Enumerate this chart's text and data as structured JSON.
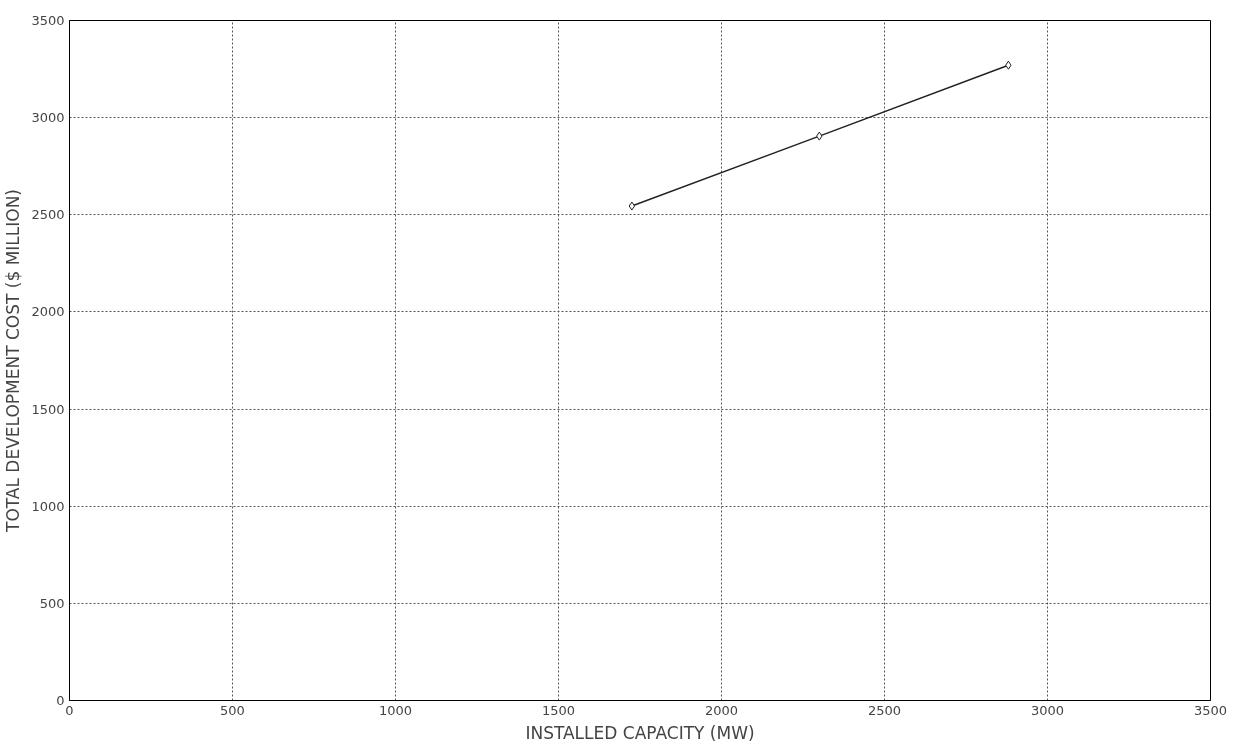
{
  "chart_data": {
    "type": "line",
    "xlabel": "INSTALLED CAPACITY (MW)",
    "ylabel": "TOTAL DEVELOPMENT COST ($ MILLION)",
    "x": [
      1725,
      2300,
      2880
    ],
    "series": [
      {
        "color": "#222222",
        "values": [
          2545,
          2905,
          3270
        ]
      }
    ],
    "xlim": [
      0,
      3500
    ],
    "ylim": [
      0,
      3500
    ],
    "xticks": [
      0,
      500,
      1000,
      1500,
      2000,
      2500,
      3000,
      3500
    ],
    "yticks": [
      0,
      500,
      1000,
      1500,
      2000,
      2500,
      3000,
      3500
    ],
    "grid": true,
    "marker": "diamond",
    "line_style": "solid"
  }
}
